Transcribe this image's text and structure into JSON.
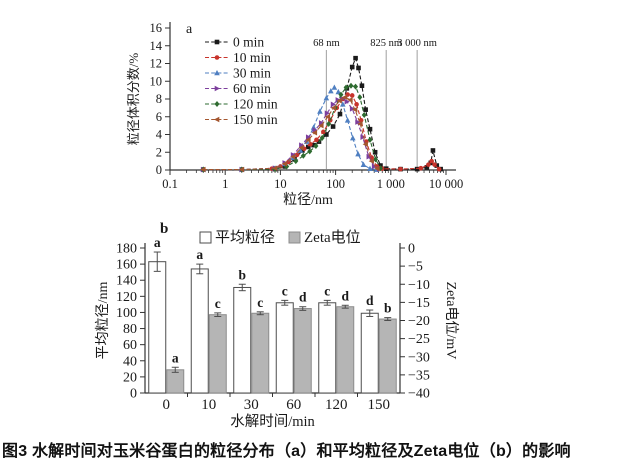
{
  "figure": {
    "caption": "图3 水解时间对玉米谷蛋白的粒径分布（a）和平均粒径及Zeta电位（b）的影响"
  },
  "chart_data": [
    {
      "type": "line",
      "panel_label": "a",
      "xlabel": "粒径/nm",
      "ylabel": "粒径体积分数/%",
      "x_scale": "log",
      "xlim": [
        0.1,
        10000
      ],
      "ylim": [
        0,
        16
      ],
      "y_tick_step": 2,
      "x_tick_labels": [
        "0.1",
        "1",
        "10",
        "100",
        "1 000",
        "10 000"
      ],
      "grid": false,
      "legend_position": "upper-left-inside",
      "annotations": [
        {
          "x": 68,
          "label": "68 nm"
        },
        {
          "x": 825,
          "label": "825 nm"
        },
        {
          "x": 3000,
          "label": "3 000 nm"
        }
      ],
      "series": [
        {
          "name": "0 min",
          "color": "#1a1a1a",
          "marker": "square",
          "x": [
            0.4,
            2,
            8,
            12,
            18,
            25,
            32,
            40,
            50,
            68,
            90,
            120,
            160,
            200,
            230,
            260,
            300,
            350,
            420,
            520,
            650,
            825,
            1500,
            3000,
            4500,
            5300,
            5800,
            6800,
            8000
          ],
          "y": [
            0.05,
            0.05,
            0.1,
            0.4,
            1.2,
            2.2,
            2.6,
            2.8,
            3.2,
            4.0,
            4.9,
            6.3,
            9.2,
            11.6,
            12.6,
            11.5,
            9.5,
            6.8,
            4.6,
            2.0,
            0.5,
            0.15,
            0.1,
            0.1,
            0.3,
            0.8,
            2.2,
            0.5,
            0.1
          ]
        },
        {
          "name": "10 min",
          "color": "#c8332b",
          "marker": "circle",
          "x": [
            0.4,
            2,
            7,
            10,
            14,
            20,
            27,
            35,
            45,
            60,
            80,
            105,
            135,
            165,
            200,
            240,
            290,
            360,
            450,
            560,
            700,
            1500,
            3500,
            4800,
            5500,
            6200,
            7500
          ],
          "y": [
            0.05,
            0.05,
            0.15,
            0.4,
            0.9,
            1.7,
            2.4,
            2.9,
            3.4,
            4.3,
            5.6,
            7.0,
            8.0,
            8.5,
            8.4,
            7.4,
            5.6,
            3.2,
            1.4,
            0.4,
            0.15,
            0.1,
            0.2,
            0.6,
            1.0,
            0.6,
            0.1
          ]
        },
        {
          "name": "30 min",
          "color": "#4f7fc1",
          "marker": "triangle-up",
          "x": [
            0.4,
            2,
            8,
            12,
            17,
            23,
            30,
            40,
            52,
            68,
            82,
            95,
            112,
            135,
            165,
            205,
            255,
            320,
            420,
            550
          ],
          "y": [
            0.05,
            0.05,
            0.2,
            0.7,
            1.4,
            2.2,
            3.2,
            4.8,
            6.6,
            8.1,
            8.9,
            9.3,
            8.8,
            7.4,
            5.6,
            3.6,
            1.8,
            0.6,
            0.15,
            0.05
          ]
        },
        {
          "name": "60 min",
          "color": "#7d3f9d",
          "marker": "triangle-right",
          "x": [
            0.4,
            2,
            8,
            12,
            17,
            24,
            32,
            42,
            55,
            70,
            90,
            110,
            130,
            160,
            200,
            250,
            310,
            400,
            500,
            620
          ],
          "y": [
            0.05,
            0.05,
            0.2,
            0.8,
            1.7,
            2.8,
            3.7,
            4.5,
            5.3,
            6.4,
            7.4,
            7.9,
            8.0,
            7.7,
            6.9,
            5.4,
            3.7,
            1.5,
            0.4,
            0.1
          ]
        },
        {
          "name": "120 min",
          "color": "#2e6b30",
          "marker": "diamond",
          "x": [
            0.4,
            2,
            8,
            13,
            19,
            26,
            34,
            44,
            57,
            75,
            98,
            125,
            155,
            190,
            230,
            275,
            330,
            420,
            530,
            650
          ],
          "y": [
            0.05,
            0.05,
            0.1,
            0.4,
            1.0,
            1.6,
            2.1,
            2.7,
            3.6,
            5.2,
            7.0,
            8.5,
            9.3,
            9.5,
            9.4,
            8.2,
            6.2,
            3.4,
            1.2,
            0.2
          ]
        },
        {
          "name": "150 min",
          "color": "#a4562f",
          "marker": "triangle-left",
          "x": [
            0.4,
            2,
            8,
            12,
            17,
            24,
            32,
            42,
            55,
            72,
            92,
            118,
            148,
            185,
            225,
            280,
            350,
            450,
            570
          ],
          "y": [
            0.05,
            0.05,
            0.2,
            0.7,
            1.5,
            2.5,
            3.4,
            4.2,
            5.0,
            6.0,
            7.0,
            7.8,
            8.2,
            7.9,
            6.8,
            5.2,
            2.9,
            1.0,
            0.15
          ]
        }
      ]
    },
    {
      "type": "bar",
      "panel_label": "b",
      "categories": [
        "0",
        "10",
        "30",
        "60",
        "120",
        "150"
      ],
      "xlabel": "水解时间/min",
      "left_axis": {
        "label": "平均粒径/nm",
        "lim": [
          0,
          180
        ],
        "tick_step": 20
      },
      "right_axis": {
        "label": "Zeta电位/mV",
        "lim": [
          -40,
          0
        ],
        "tick_step": 5
      },
      "series": [
        {
          "name": "平均粒径",
          "axis": "left",
          "fill": "#ffffff",
          "stroke": "#4d4d4d",
          "values": [
            163,
            154,
            131,
            112,
            112,
            99
          ],
          "errors": [
            12,
            6,
            4,
            3,
            3,
            4
          ],
          "sig_letters": [
            "a",
            "a",
            "b",
            "c",
            "c",
            "d"
          ]
        },
        {
          "name": "Zeta电位",
          "axis": "right",
          "fill": "#b5b5b5",
          "stroke": "#8c8c8c",
          "values": [
            -33.6,
            -18.4,
            -18.0,
            -16.7,
            -16.2,
            -19.6
          ],
          "errors": [
            0.7,
            0.5,
            0.4,
            0.5,
            0.4,
            0.4
          ],
          "sig_letters": [
            "a",
            "c",
            "c",
            "d",
            "d",
            "b"
          ]
        }
      ]
    }
  ]
}
